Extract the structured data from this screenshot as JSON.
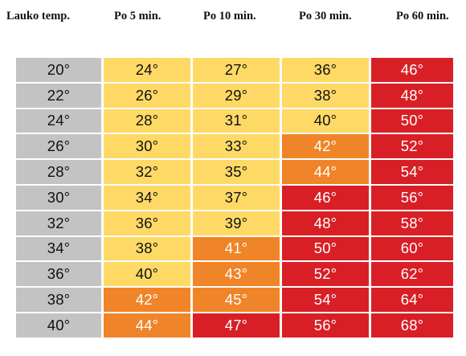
{
  "headers": [
    "Lauko temp.",
    "Po 5 min.",
    "Po 10 min.",
    "Po 30 min.",
    "Po 60 min."
  ],
  "colors": {
    "gray": "#c3c3c3",
    "yellow": "#ffd966",
    "orange": "#f08428",
    "red": "#d91f26"
  },
  "rows": [
    {
      "cells": [
        {
          "text": "20°",
          "color": "gray"
        },
        {
          "text": "24°",
          "color": "yellow"
        },
        {
          "text": "27°",
          "color": "yellow"
        },
        {
          "text": "36°",
          "color": "yellow"
        },
        {
          "text": "46°",
          "color": "red"
        }
      ]
    },
    {
      "cells": [
        {
          "text": "22°",
          "color": "gray"
        },
        {
          "text": "26°",
          "color": "yellow"
        },
        {
          "text": "29°",
          "color": "yellow"
        },
        {
          "text": "38°",
          "color": "yellow"
        },
        {
          "text": "48°",
          "color": "red"
        }
      ]
    },
    {
      "cells": [
        {
          "text": "24°",
          "color": "gray"
        },
        {
          "text": "28°",
          "color": "yellow"
        },
        {
          "text": "31°",
          "color": "yellow"
        },
        {
          "text": "40°",
          "color": "yellow"
        },
        {
          "text": "50°",
          "color": "red"
        }
      ]
    },
    {
      "cells": [
        {
          "text": "26°",
          "color": "gray"
        },
        {
          "text": "30°",
          "color": "yellow"
        },
        {
          "text": "33°",
          "color": "yellow"
        },
        {
          "text": "42°",
          "color": "orange"
        },
        {
          "text": "52°",
          "color": "red"
        }
      ]
    },
    {
      "cells": [
        {
          "text": "28°",
          "color": "gray"
        },
        {
          "text": "32°",
          "color": "yellow"
        },
        {
          "text": "35°",
          "color": "yellow"
        },
        {
          "text": "44°",
          "color": "orange"
        },
        {
          "text": "54°",
          "color": "red"
        }
      ]
    },
    {
      "cells": [
        {
          "text": "30°",
          "color": "gray"
        },
        {
          "text": "34°",
          "color": "yellow"
        },
        {
          "text": "37°",
          "color": "yellow"
        },
        {
          "text": "46°",
          "color": "red"
        },
        {
          "text": "56°",
          "color": "red"
        }
      ]
    },
    {
      "cells": [
        {
          "text": "32°",
          "color": "gray"
        },
        {
          "text": "36°",
          "color": "yellow"
        },
        {
          "text": "39°",
          "color": "yellow"
        },
        {
          "text": "48°",
          "color": "red"
        },
        {
          "text": "58°",
          "color": "red"
        }
      ]
    },
    {
      "cells": [
        {
          "text": "34°",
          "color": "gray"
        },
        {
          "text": "38°",
          "color": "yellow"
        },
        {
          "text": "41°",
          "color": "orange"
        },
        {
          "text": "50°",
          "color": "red"
        },
        {
          "text": "60°",
          "color": "red"
        }
      ]
    },
    {
      "cells": [
        {
          "text": "36°",
          "color": "gray"
        },
        {
          "text": "40°",
          "color": "yellow"
        },
        {
          "text": "43°",
          "color": "orange"
        },
        {
          "text": "52°",
          "color": "red"
        },
        {
          "text": "62°",
          "color": "red"
        }
      ]
    },
    {
      "cells": [
        {
          "text": "38°",
          "color": "gray"
        },
        {
          "text": "42°",
          "color": "orange"
        },
        {
          "text": "45°",
          "color": "orange"
        },
        {
          "text": "54°",
          "color": "red"
        },
        {
          "text": "64°",
          "color": "red"
        }
      ]
    },
    {
      "cells": [
        {
          "text": "40°",
          "color": "gray"
        },
        {
          "text": "44°",
          "color": "orange"
        },
        {
          "text": "47°",
          "color": "red"
        },
        {
          "text": "56°",
          "color": "red"
        },
        {
          "text": "68°",
          "color": "red"
        }
      ]
    }
  ]
}
